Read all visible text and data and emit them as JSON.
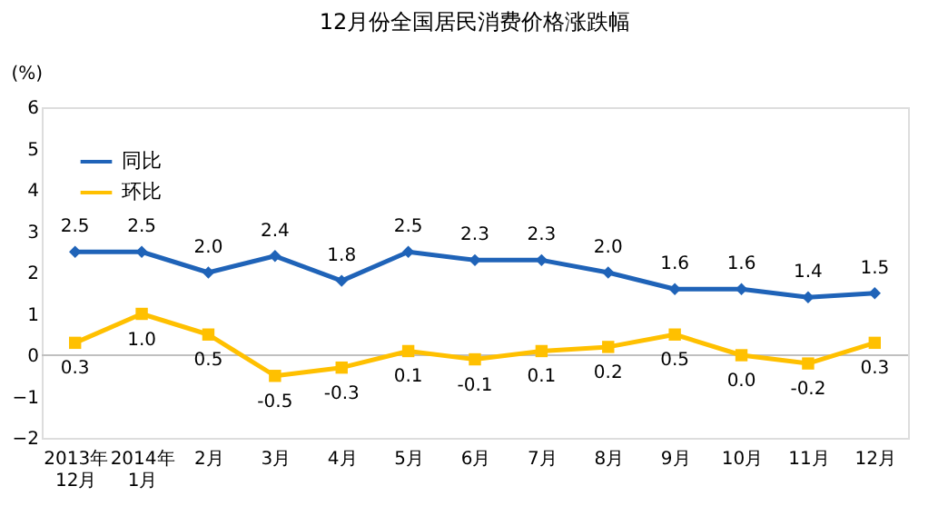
{
  "chart_data": {
    "type": "line",
    "title": "12月份全国居民消费价格涨跌幅",
    "ylabel": "(%)",
    "categories": [
      "2013年\n12月",
      "2014年\n1月",
      "2月",
      "3月",
      "4月",
      "5月",
      "6月",
      "7月",
      "8月",
      "9月",
      "10月",
      "11月",
      "12月"
    ],
    "series": [
      {
        "name": "同比",
        "color": "#1f63b8",
        "marker": "diamond",
        "values": [
          2.5,
          2.5,
          2.0,
          2.4,
          1.8,
          2.5,
          2.3,
          2.3,
          2.0,
          1.6,
          1.6,
          1.4,
          1.5
        ],
        "value_labels": [
          "2.5",
          "2.5",
          "2.0",
          "2.4",
          "1.8",
          "2.5",
          "2.3",
          "2.3",
          "2.0",
          "1.6",
          "1.6",
          "1.4",
          "1.5"
        ]
      },
      {
        "name": "环比",
        "color": "#ffc000",
        "marker": "square",
        "values": [
          0.3,
          1.0,
          0.5,
          -0.5,
          -0.3,
          0.1,
          -0.1,
          0.1,
          0.2,
          0.5,
          0.0,
          -0.2,
          0.3
        ],
        "value_labels": [
          "0.3",
          "1.0",
          "0.5",
          "-0.5",
          "-0.3",
          "0.1",
          "-0.1",
          "0.1",
          "0.2",
          "0.5",
          "0.0",
          "-0.2",
          "0.3"
        ]
      }
    ],
    "ylim": [
      -2,
      6
    ],
    "yticks": [
      -2,
      -1,
      0,
      1,
      2,
      3,
      4,
      5,
      6
    ],
    "grid": false,
    "legend": "top left",
    "ref_lines": [
      {
        "axis": "y",
        "value": 0,
        "color": "#c0c0c0"
      }
    ],
    "line_style": "solid"
  }
}
